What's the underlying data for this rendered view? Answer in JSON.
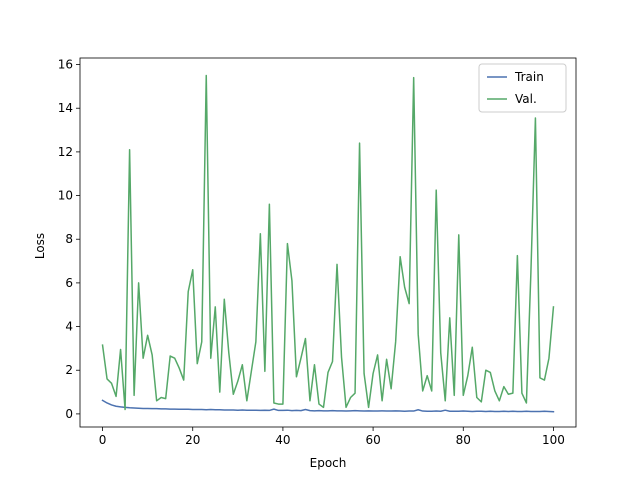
{
  "chart_data": {
    "type": "line",
    "xlabel": "Epoch",
    "ylabel": "Loss",
    "xlim": [
      -5,
      105
    ],
    "ylim": [
      -0.6,
      16.3
    ],
    "xticks": [
      0,
      20,
      40,
      60,
      80,
      100
    ],
    "yticks": [
      0,
      2,
      4,
      6,
      8,
      10,
      12,
      14,
      16
    ],
    "legend_position": "top-right",
    "grid": false,
    "x": [
      0,
      1,
      2,
      3,
      4,
      5,
      6,
      7,
      8,
      9,
      10,
      11,
      12,
      13,
      14,
      15,
      16,
      17,
      18,
      19,
      20,
      21,
      22,
      23,
      24,
      25,
      26,
      27,
      28,
      29,
      30,
      31,
      32,
      33,
      34,
      35,
      36,
      37,
      38,
      39,
      40,
      41,
      42,
      43,
      44,
      45,
      46,
      47,
      48,
      49,
      50,
      51,
      52,
      53,
      54,
      55,
      56,
      57,
      58,
      59,
      60,
      61,
      62,
      63,
      64,
      65,
      66,
      67,
      68,
      69,
      70,
      71,
      72,
      73,
      74,
      75,
      76,
      77,
      78,
      79,
      80,
      81,
      82,
      83,
      84,
      85,
      86,
      87,
      88,
      89,
      90,
      91,
      92,
      93,
      94,
      95,
      96,
      97,
      98,
      99,
      100
    ],
    "series": [
      {
        "name": "Train",
        "color": "#4c72b0",
        "values": [
          0.62,
          0.5,
          0.41,
          0.35,
          0.32,
          0.3,
          0.28,
          0.27,
          0.26,
          0.25,
          0.25,
          0.24,
          0.24,
          0.23,
          0.23,
          0.22,
          0.22,
          0.21,
          0.21,
          0.21,
          0.2,
          0.2,
          0.2,
          0.19,
          0.2,
          0.19,
          0.19,
          0.18,
          0.18,
          0.18,
          0.17,
          0.18,
          0.17,
          0.17,
          0.17,
          0.16,
          0.17,
          0.16,
          0.22,
          0.16,
          0.16,
          0.17,
          0.15,
          0.16,
          0.15,
          0.2,
          0.15,
          0.14,
          0.15,
          0.14,
          0.14,
          0.15,
          0.14,
          0.14,
          0.13,
          0.14,
          0.15,
          0.14,
          0.13,
          0.14,
          0.13,
          0.13,
          0.14,
          0.13,
          0.13,
          0.14,
          0.13,
          0.12,
          0.13,
          0.13,
          0.19,
          0.13,
          0.12,
          0.12,
          0.13,
          0.12,
          0.17,
          0.12,
          0.12,
          0.12,
          0.13,
          0.12,
          0.11,
          0.12,
          0.12,
          0.11,
          0.12,
          0.11,
          0.11,
          0.12,
          0.11,
          0.12,
          0.11,
          0.11,
          0.12,
          0.11,
          0.11,
          0.11,
          0.12,
          0.11,
          0.1
        ]
      },
      {
        "name": "Val.",
        "color": "#55a868",
        "values": [
          3.15,
          1.6,
          1.4,
          0.8,
          2.95,
          0.2,
          12.1,
          0.85,
          6.0,
          2.55,
          3.6,
          2.7,
          0.6,
          0.75,
          0.7,
          2.65,
          2.55,
          2.1,
          1.55,
          5.6,
          6.6,
          2.3,
          3.3,
          15.5,
          2.55,
          4.9,
          1.0,
          5.25,
          2.8,
          0.9,
          1.5,
          2.25,
          0.6,
          1.95,
          3.3,
          8.25,
          1.95,
          9.6,
          0.5,
          0.45,
          0.45,
          7.8,
          6.1,
          1.7,
          2.55,
          3.45,
          0.6,
          2.25,
          0.45,
          0.3,
          1.9,
          2.4,
          6.85,
          2.6,
          0.3,
          0.75,
          0.95,
          12.4,
          1.85,
          0.3,
          1.85,
          2.7,
          0.6,
          2.5,
          1.15,
          3.3,
          7.2,
          5.8,
          5.05,
          15.4,
          3.65,
          1.05,
          1.75,
          1.05,
          10.25,
          2.8,
          0.6,
          4.4,
          0.85,
          8.2,
          0.85,
          1.75,
          3.05,
          0.75,
          0.55,
          2.0,
          1.9,
          1.05,
          0.6,
          1.25,
          0.9,
          0.95,
          7.25,
          0.95,
          0.5,
          6.5,
          13.55,
          1.65,
          1.55,
          2.55,
          4.9
        ]
      }
    ]
  }
}
